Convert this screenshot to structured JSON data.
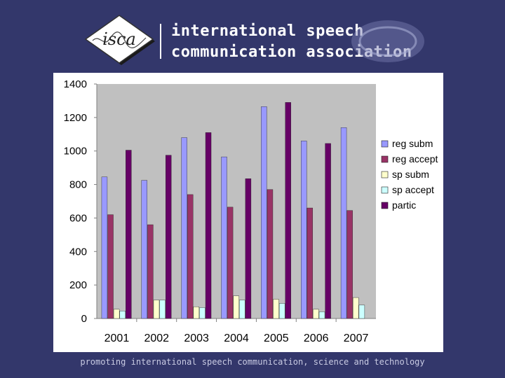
{
  "header": {
    "logo_text": "isca",
    "brand_line_1": "international speech",
    "brand_line_2": "communication association"
  },
  "footer": {
    "tagline": "promoting international speech communication, science and technology"
  },
  "colors": {
    "background": "#33376b",
    "reg_subm": "#9999ff",
    "reg_accept": "#993366",
    "sp_subm": "#ffffcc",
    "sp_accept": "#ccffff",
    "partic": "#660066"
  },
  "chart_data": {
    "type": "bar",
    "title": "",
    "xlabel": "",
    "ylabel": "",
    "ylim": [
      0,
      1400
    ],
    "yticks": [
      0,
      200,
      400,
      600,
      800,
      1000,
      1200,
      1400
    ],
    "grid": false,
    "legend_position": "right",
    "categories": [
      "2001",
      "2002",
      "2003",
      "2004",
      "2005",
      "2006",
      "2007"
    ],
    "series": [
      {
        "name": "reg subm",
        "color": "#9999ff",
        "values": [
          845,
          825,
          1080,
          965,
          1265,
          1060,
          1140
        ]
      },
      {
        "name": "reg accept",
        "color": "#993366",
        "values": [
          620,
          560,
          740,
          665,
          770,
          660,
          645
        ]
      },
      {
        "name": "sp subm",
        "color": "#ffffcc",
        "values": [
          55,
          110,
          70,
          135,
          115,
          55,
          125
        ]
      },
      {
        "name": "sp accept",
        "color": "#ccffff",
        "values": [
          45,
          110,
          65,
          110,
          90,
          40,
          80
        ]
      },
      {
        "name": "partic",
        "color": "#660066",
        "values": [
          1005,
          975,
          1110,
          835,
          1290,
          1045,
          null
        ]
      }
    ]
  }
}
